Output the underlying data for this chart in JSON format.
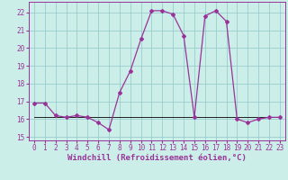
{
  "xlabel": "Windchill (Refroidissement éolien,°C)",
  "background_color": "#cceee8",
  "grid_color": "#99cccc",
  "line_color": "#993399",
  "flat_line_color": "#000000",
  "xlim": [
    -0.5,
    23.5
  ],
  "ylim": [
    14.8,
    22.6
  ],
  "yticks": [
    15,
    16,
    17,
    18,
    19,
    20,
    21,
    22
  ],
  "xticks": [
    0,
    1,
    2,
    3,
    4,
    5,
    6,
    7,
    8,
    9,
    10,
    11,
    12,
    13,
    14,
    15,
    16,
    17,
    18,
    19,
    20,
    21,
    22,
    23
  ],
  "x": [
    0,
    1,
    2,
    3,
    4,
    5,
    6,
    7,
    8,
    9,
    10,
    11,
    12,
    13,
    14,
    15,
    16,
    17,
    18,
    19,
    20,
    21,
    22,
    23
  ],
  "y_main": [
    16.9,
    16.9,
    16.2,
    16.1,
    16.2,
    16.1,
    15.8,
    15.4,
    17.5,
    18.7,
    20.5,
    22.1,
    22.1,
    21.9,
    20.7,
    16.1,
    21.8,
    22.1,
    21.5,
    16.0,
    15.8,
    16.0,
    16.1,
    16.1
  ],
  "y_flat": [
    16.1,
    16.1,
    16.1,
    16.1,
    16.1,
    16.1,
    16.1,
    16.1,
    16.1,
    16.1,
    16.1,
    16.1,
    16.1,
    16.1,
    16.1,
    16.1,
    16.1,
    16.1,
    16.1,
    16.1,
    16.1,
    16.1,
    16.1,
    16.1
  ],
  "tick_fontsize": 5.5,
  "label_fontsize": 6.5
}
